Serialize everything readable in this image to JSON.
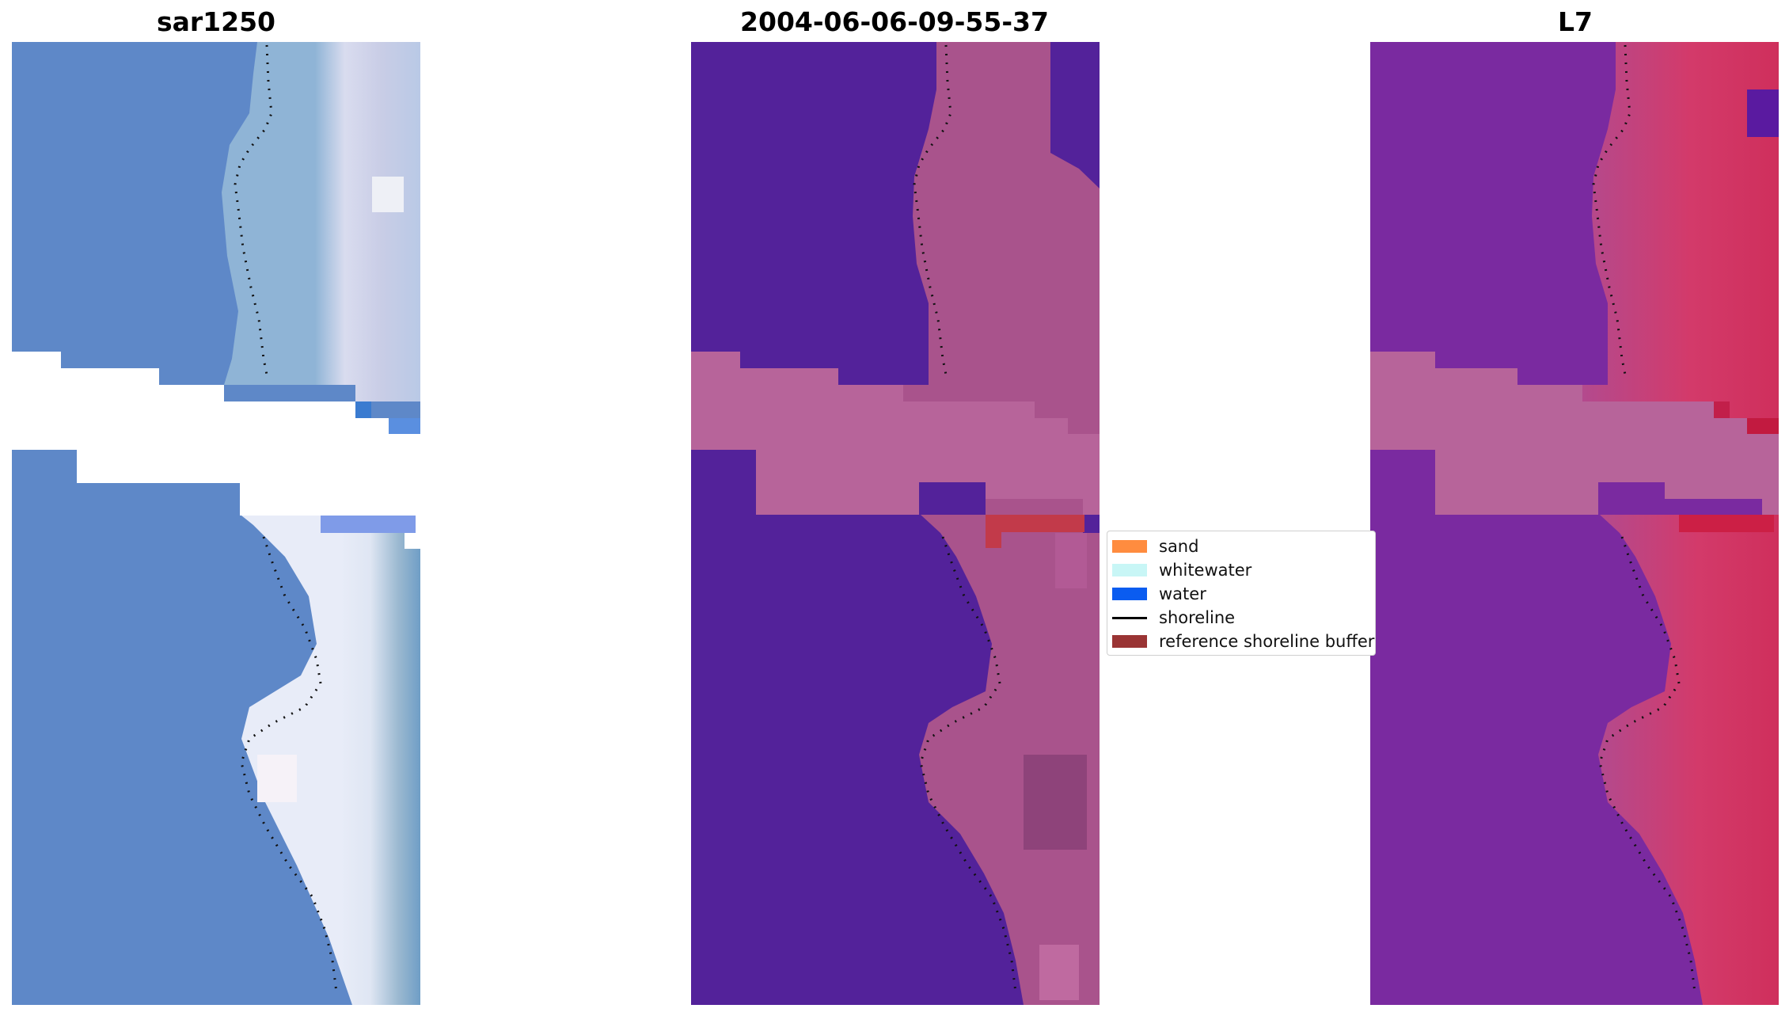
{
  "panels": [
    {
      "title": "sar1250"
    },
    {
      "title": "2004-06-06-09-55-37"
    },
    {
      "title": "L7"
    }
  ],
  "legend": {
    "items": [
      {
        "label": "sand",
        "color": "#ff8c3f",
        "kind": "patch"
      },
      {
        "label": "whitewater",
        "color": "#c8f6f6",
        "kind": "patch"
      },
      {
        "label": "water",
        "color": "#0a5cf0",
        "kind": "patch"
      },
      {
        "label": "shoreline",
        "color": "#000000",
        "kind": "line"
      },
      {
        "label": "reference shoreline buffer",
        "color": "#9a3434",
        "kind": "patch"
      }
    ]
  },
  "colors": {
    "sar_water": "#5e88c8",
    "sar_land": "#cfd3ea",
    "classified_water": "#53229a",
    "classified_land": "#a9538c",
    "cloud_mask": "#b7649a",
    "l7_water": "#7a2aa0",
    "l7_land": "#cf3c6e",
    "buffer_patch": "#c23a4a"
  }
}
